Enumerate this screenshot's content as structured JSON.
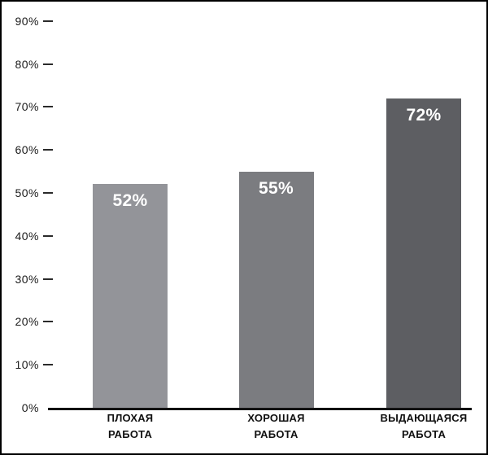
{
  "chart_data": {
    "type": "bar",
    "title": "",
    "xlabel": "",
    "ylabel": "",
    "categories": [
      "ПЛОХАЯ РАБОТА",
      "ХОРОШАЯ РАБОТА",
      "ВЫДАЮЩАЯСЯ РАБОТА"
    ],
    "category_lines": [
      [
        "ПЛОХАЯ",
        "РАБОТА"
      ],
      [
        "ХОРОШАЯ",
        "РАБОТА"
      ],
      [
        "ВЫДАЮЩАЯСЯ",
        "РАБОТА"
      ]
    ],
    "values": [
      52,
      55,
      72
    ],
    "value_labels": [
      "52%",
      "55%",
      "72%"
    ],
    "bar_colors": [
      "#939499",
      "#7b7c80",
      "#5d5e62"
    ],
    "value_label_color": "#ffffff",
    "y_tick_labels": [
      "0%",
      "10%",
      "20%",
      "30%",
      "40%",
      "50%",
      "60%",
      "70%",
      "80%",
      "90%"
    ],
    "ylim": [
      0,
      90
    ],
    "y_tick_step": 10,
    "grid": false,
    "legend": false,
    "axis_color": "#121212",
    "frame_color": "#000000",
    "background_color": "#ffffff"
  }
}
